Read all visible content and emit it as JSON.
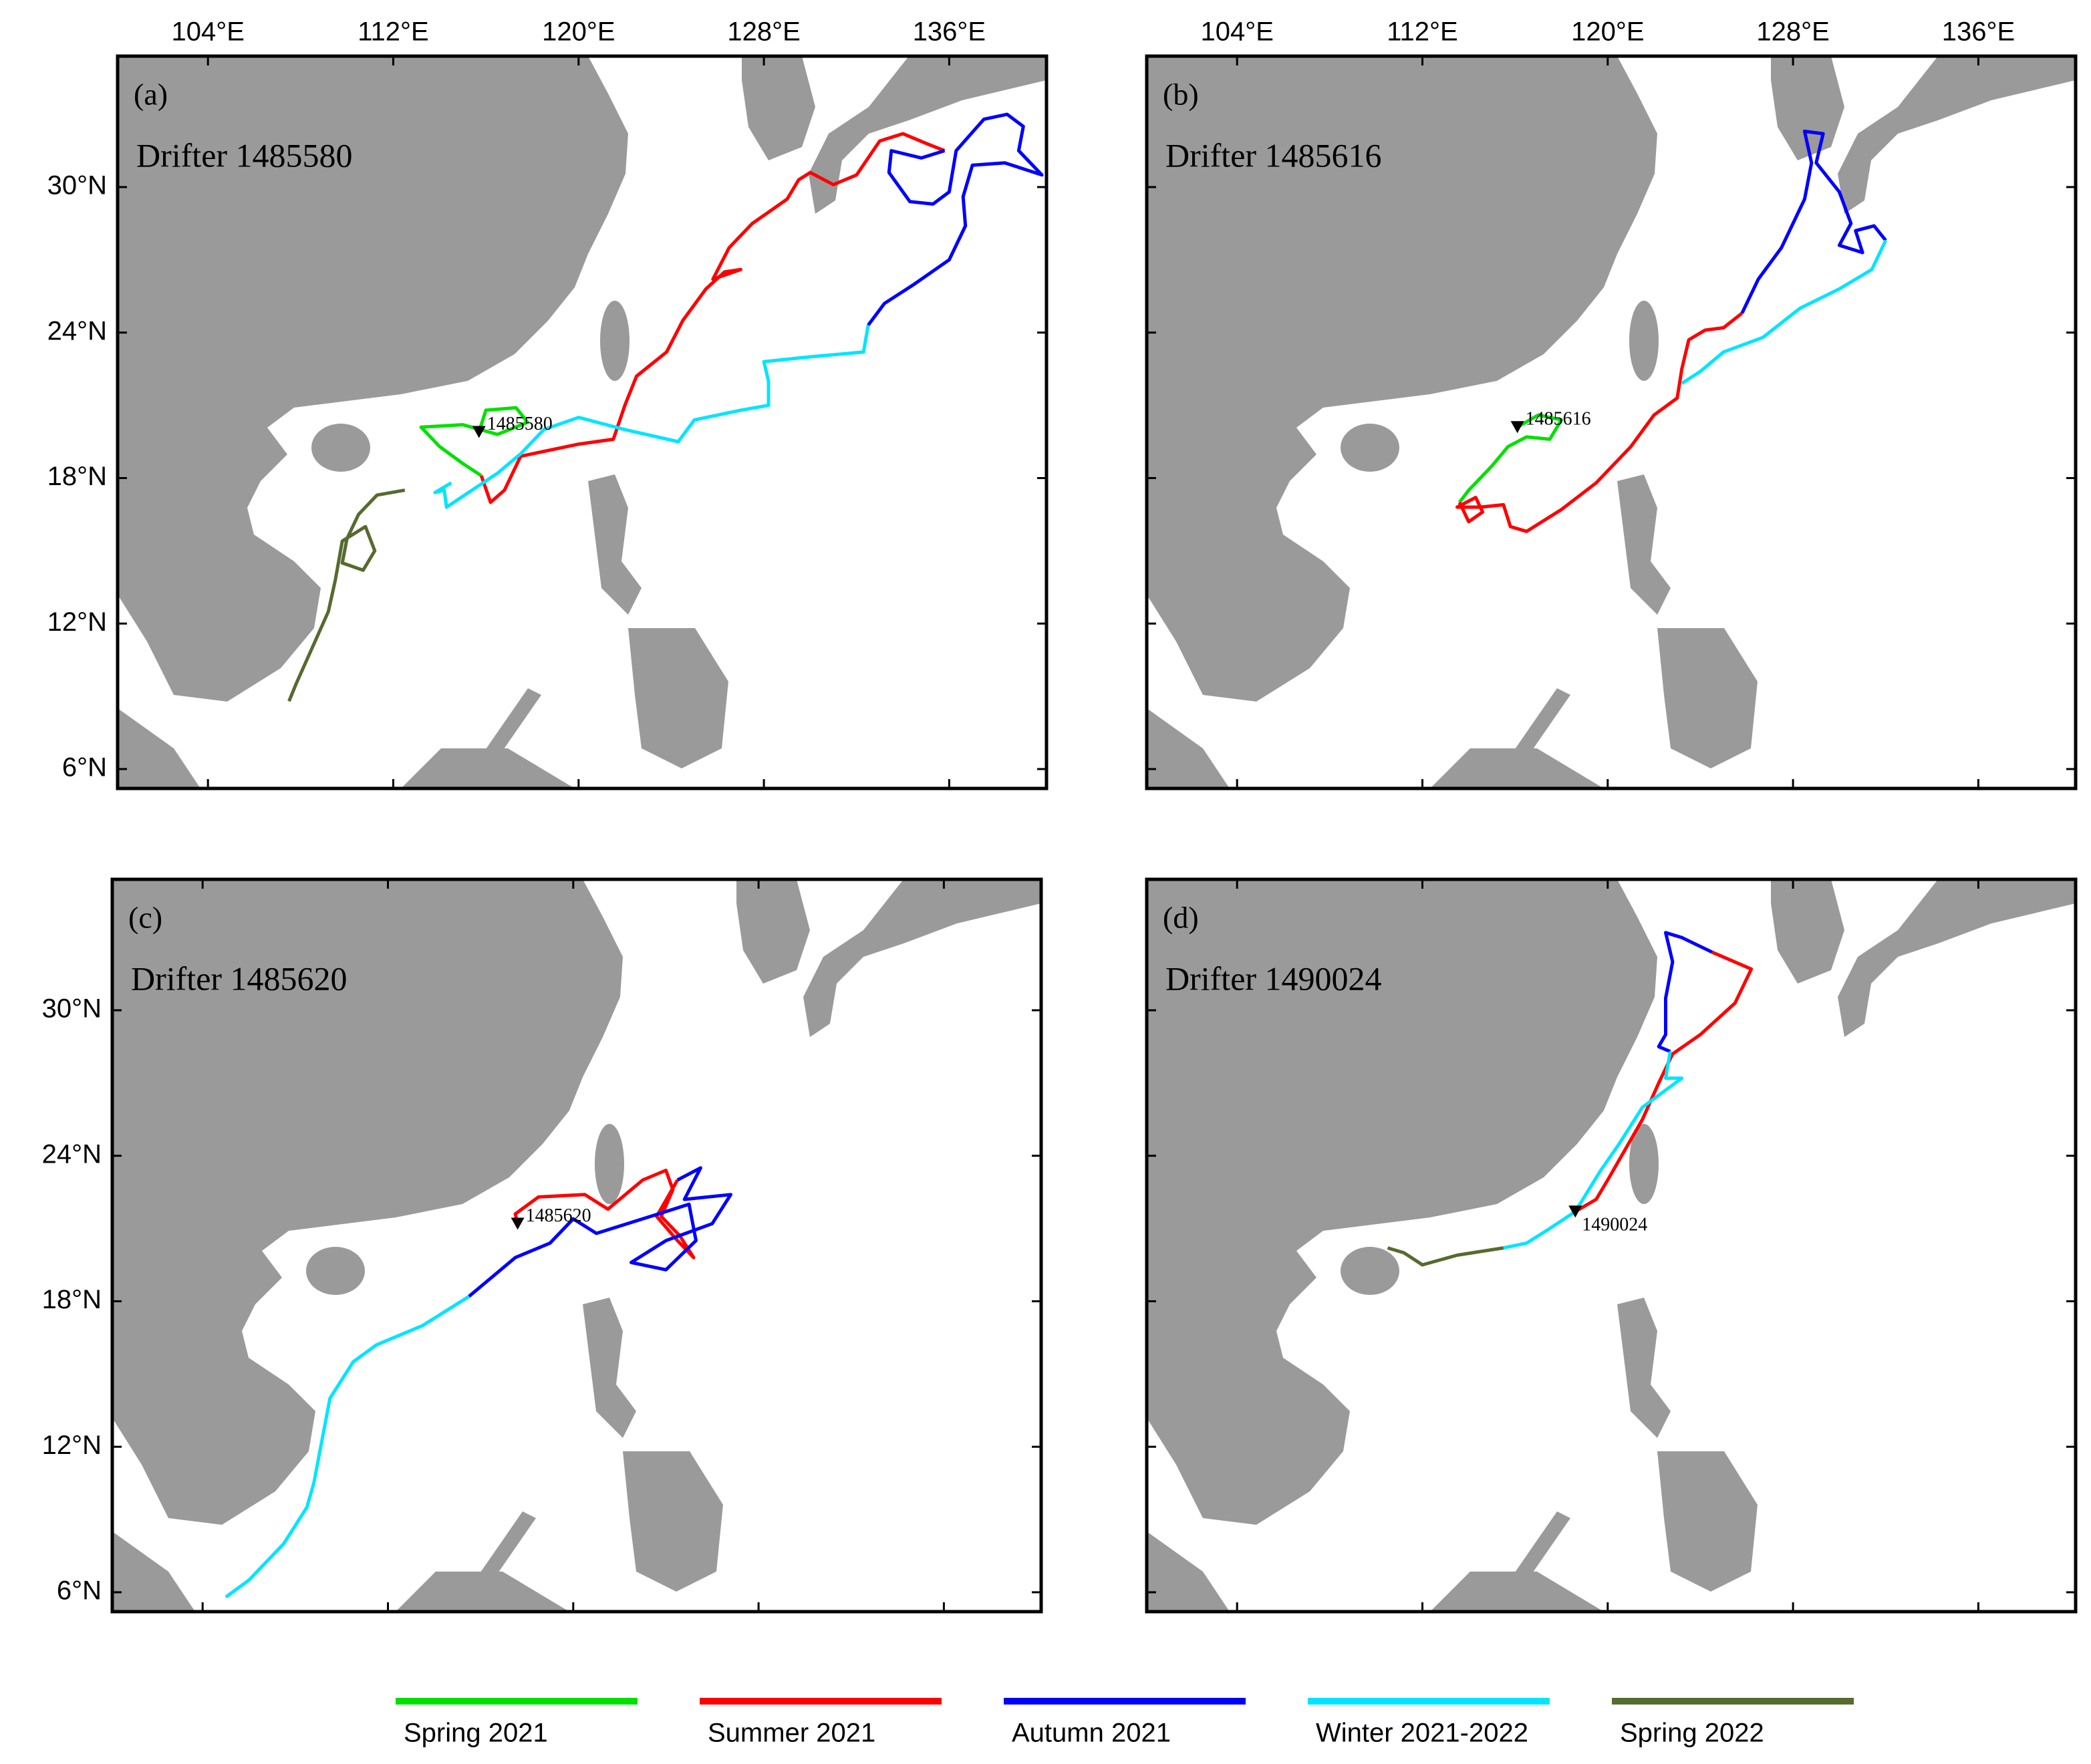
{
  "lon_range": [
    100.1,
    140.2
  ],
  "lat_range": [
    5.2,
    35.4
  ],
  "lon_ticks": [
    {
      "value": 104,
      "label": "104°E"
    },
    {
      "value": 112,
      "label": "112°E"
    },
    {
      "value": 120,
      "label": "120°E"
    },
    {
      "value": 128,
      "label": "128°E"
    },
    {
      "value": 136,
      "label": "136°E"
    }
  ],
  "lat_ticks": [
    {
      "value": 6,
      "label": "6°N"
    },
    {
      "value": 12,
      "label": "12°N"
    },
    {
      "value": 18,
      "label": "18°N"
    },
    {
      "value": 24,
      "label": "24°N"
    },
    {
      "value": 30,
      "label": "30°N"
    }
  ],
  "panels": [
    {
      "label": "(a)",
      "title": "Drifter 1485580",
      "marker": {
        "label": "1485580",
        "lon": 115.7,
        "lat": 19.9
      },
      "tracks": [
        {
          "color": "#00e000",
          "lon": [
            115.7,
            116,
            117.3,
            117.8,
            116.5,
            115,
            113.2,
            114,
            115,
            115.8
          ],
          "lat": [
            19.9,
            20.8,
            20.9,
            20.3,
            19.8,
            20.2,
            20.1,
            19.3,
            18.6,
            18.1
          ]
        },
        {
          "color": "#ff0000",
          "lon": [
            115.8,
            116.2,
            116.8,
            117.5,
            120,
            121.5,
            122,
            122.5,
            123.8,
            124.5,
            125.5,
            126.3,
            127,
            125.8,
            126.5,
            127.5,
            129,
            129.5,
            130,
            131,
            132,
            133,
            134,
            135,
            135.8
          ],
          "lat": [
            18.1,
            17,
            17.5,
            18.9,
            19.4,
            19.6,
            21,
            22.2,
            23.2,
            24.5,
            25.8,
            26.5,
            26.6,
            26.2,
            27.5,
            28.5,
            29.5,
            30.3,
            30.6,
            30.1,
            30.5,
            31.9,
            32.2,
            31.8,
            31.5
          ]
        },
        {
          "color": "#0000ff",
          "lon": [
            135.8,
            134.8,
            133.5,
            133.4,
            134.3,
            135.3,
            136,
            136.3,
            137.5,
            138.5,
            139.2,
            139,
            140,
            138.4,
            137,
            136.6,
            136.7,
            136,
            134.5,
            133.2,
            132.5
          ],
          "lat": [
            31.5,
            31.2,
            31.5,
            30.6,
            29.4,
            29.3,
            29.8,
            31.5,
            32.8,
            33,
            32.5,
            31.5,
            30.5,
            31,
            30.9,
            29.6,
            28.4,
            27,
            26,
            25.2,
            24.3
          ]
        },
        {
          "color": "#00e5ff",
          "lon": [
            132.5,
            132.3,
            130,
            128,
            128.2,
            128.2,
            127,
            125,
            124.3,
            122,
            120,
            118.5,
            117.5,
            116.5,
            114.3,
            114.2,
            113.8,
            114.5
          ],
          "lat": [
            24.3,
            23.2,
            23,
            22.8,
            22,
            21,
            20.8,
            20.4,
            19.5,
            20,
            20.5,
            20,
            19,
            18.2,
            16.8,
            17.5,
            17.4,
            17.8
          ]
        },
        {
          "color": "#556b2f",
          "lon": [
            112.5,
            111.3,
            110.5,
            110,
            109.8,
            110.7,
            111.2,
            110.8,
            109.8,
            109.5,
            109.2,
            108.5,
            107.8,
            107.5
          ],
          "lat": [
            17.5,
            17.3,
            16.5,
            15.5,
            14.5,
            14.2,
            15,
            16,
            15.4,
            13.8,
            12.5,
            11,
            9.5,
            8.8
          ]
        }
      ]
    },
    {
      "label": "(b)",
      "title": "Drifter 1485616",
      "marker": {
        "label": "1485616",
        "lon": 116.1,
        "lat": 20.1
      },
      "tracks": [
        {
          "color": "#00e000",
          "lon": [
            116.1,
            117,
            118,
            117.5,
            116.5,
            115.7,
            115,
            114.5,
            114,
            113.6
          ],
          "lat": [
            20.1,
            20.6,
            20.4,
            19.6,
            19.7,
            19.3,
            18.5,
            18,
            17.5,
            17
          ]
        },
        {
          "color": "#ff0000",
          "lon": [
            113.6,
            114,
            114.6,
            114.3,
            113.5,
            114.5,
            115.5,
            115.8,
            116.5,
            118,
            119.5,
            121,
            122,
            123,
            123.2,
            123.5,
            124.2,
            125,
            125.8
          ],
          "lat": [
            17,
            16.2,
            16.6,
            17.2,
            16.8,
            16.8,
            16.9,
            16,
            15.8,
            16.7,
            17.8,
            19.3,
            20.6,
            21.3,
            22.5,
            23.7,
            24.1,
            24.2,
            24.8
          ]
        },
        {
          "color": "#0000ff",
          "lon": [
            125.8,
            126.5,
            127.5,
            128.5,
            128.8,
            128.5,
            129.3,
            129,
            130,
            130.5,
            130,
            131,
            130.7,
            131.5,
            132
          ],
          "lat": [
            24.8,
            26.2,
            27.5,
            29.5,
            31,
            32.3,
            32.2,
            31,
            29.8,
            28.5,
            27.6,
            27.3,
            28.2,
            28.4,
            27.8
          ]
        },
        {
          "color": "#00e5ff",
          "lon": [
            132,
            131.4,
            130,
            128.3,
            126.7,
            125,
            124,
            123.2
          ],
          "lat": [
            27.8,
            26.6,
            25.8,
            25,
            23.8,
            23.2,
            22.4,
            21.9
          ]
        }
      ]
    },
    {
      "label": "(c)",
      "title": "Drifter 1485620",
      "marker": {
        "label": "1485620",
        "lon": 117.6,
        "lat": 21.2
      },
      "tracks": [
        {
          "color": "#ff0000",
          "lon": [
            117.6,
            117.5,
            118.5,
            120.5,
            121.5,
            123,
            124,
            124.3,
            123.8,
            124.6,
            125.2,
            124.5,
            123.6,
            124.5
          ],
          "lat": [
            21.2,
            21.6,
            22.3,
            22.4,
            21.8,
            23,
            23.4,
            22.6,
            21.5,
            20.7,
            19.8,
            20.5,
            21.5,
            23
          ]
        },
        {
          "color": "#0000ff",
          "lon": [
            124.5,
            125.5,
            124.8,
            126.8,
            126,
            124,
            122.5,
            124,
            125.3,
            125,
            123,
            121,
            120,
            119,
            117.5,
            115.5
          ],
          "lat": [
            23,
            23.5,
            22.2,
            22.4,
            21.2,
            20.5,
            19.6,
            19.3,
            20.5,
            22,
            21.4,
            20.8,
            21.4,
            20.4,
            19.8,
            18.2
          ]
        },
        {
          "color": "#00e5ff",
          "lon": [
            115.5,
            113.5,
            111.5,
            110.5,
            109.5,
            109.2,
            108.8,
            108.5,
            107.5,
            106,
            105
          ],
          "lat": [
            18.2,
            17,
            16.2,
            15.5,
            14,
            12.5,
            10.5,
            9.5,
            8,
            6.5,
            5.8
          ]
        }
      ]
    },
    {
      "label": "(d)",
      "title": "Drifter 1490024",
      "marker": {
        "label": "1490024",
        "lon": 118.6,
        "lat": 21.7
      },
      "tracks": [
        {
          "color": "#ff0000",
          "lon": [
            118.6,
            119.5,
            120,
            121.5,
            122.2,
            122.8,
            124,
            125.5,
            126.2,
            124.5
          ],
          "lat": [
            21.7,
            22.2,
            23,
            25.5,
            27,
            28.2,
            29,
            30.3,
            31.7,
            32.4
          ]
        },
        {
          "color": "#0000ff",
          "lon": [
            124.5,
            123.2,
            122.5,
            122.8,
            122.5,
            122.5,
            122.2,
            122.7
          ],
          "lat": [
            32.4,
            33,
            33.2,
            32,
            30.5,
            29,
            28.5,
            28.3
          ]
        },
        {
          "color": "#00e5ff",
          "lon": [
            122.7,
            122.5,
            123.2,
            121.5,
            120.5,
            119.7,
            118.6,
            117.5,
            116.5,
            115.5
          ],
          "lat": [
            28.3,
            27.2,
            27.2,
            26,
            24.5,
            23.4,
            21.7,
            21,
            20.4,
            20.2
          ]
        },
        {
          "color": "#556b2f",
          "lon": [
            115.5,
            113.5,
            112,
            111.2,
            110.5
          ],
          "lat": [
            20.2,
            19.9,
            19.5,
            20,
            20.2
          ]
        }
      ]
    }
  ],
  "legend": [
    {
      "name": "Spring 2021",
      "color": "#00e000"
    },
    {
      "name": "Summer 2021",
      "color": "#ff0000"
    },
    {
      "name": "Autumn 2021",
      "color": "#0000ff"
    },
    {
      "name": "Winter 2021-2022",
      "color": "#00e5ff"
    },
    {
      "name": "Spring 2022",
      "color": "#556b2f"
    }
  ]
}
